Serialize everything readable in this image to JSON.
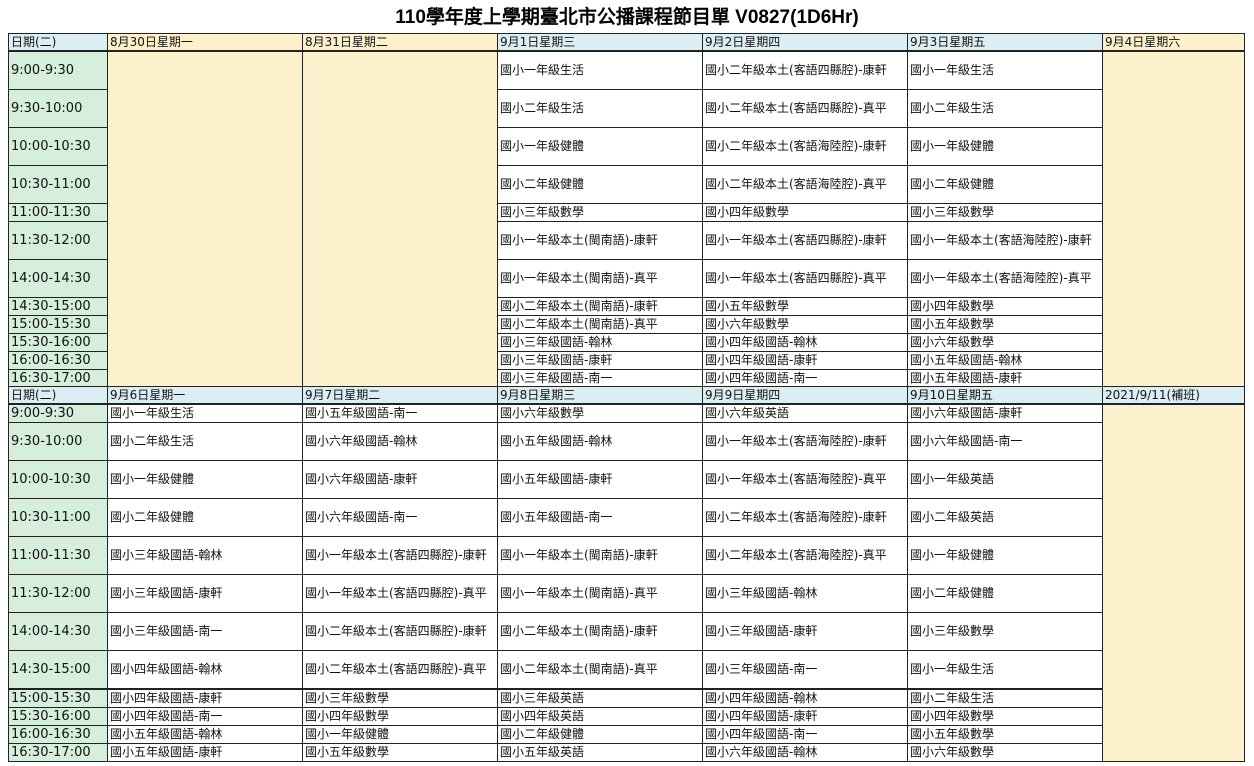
{
  "title": "110學年度上學期臺北市公播課程節目單 V0827(1D6Hr)",
  "colors": {
    "header": "#dbeef3",
    "holiday": "#fdf0cd",
    "time": "#d6eedc"
  },
  "week1": {
    "headers": [
      "日期(二)",
      "8月30日星期一",
      "8月31日星期二",
      "9月1日星期三",
      "9月2日星期四",
      "9月3日星期五",
      "9月4日星期六"
    ],
    "rows": [
      {
        "time": "9:00-9:30",
        "cells": [
          "國小一年級生活",
          "國小二年級本土(客語四縣腔)-康軒",
          "國小一年級生活"
        ]
      },
      {
        "time": "9:30-10:00",
        "cells": [
          "國小二年級生活",
          "國小二年級本土(客語四縣腔)-真平",
          "國小二年級生活"
        ]
      },
      {
        "time": "10:00-10:30",
        "cells": [
          "國小一年級健體",
          "國小二年級本土(客語海陸腔)-康軒",
          "國小一年級健體"
        ]
      },
      {
        "time": "10:30-11:00",
        "cells": [
          "國小二年級健體",
          "國小二年級本土(客語海陸腔)-真平",
          "國小二年級健體"
        ]
      },
      {
        "time": "11:00-11:30",
        "cells": [
          "國小三年級數學",
          "國小四年級數學",
          "國小三年級數學"
        ]
      },
      {
        "time": "11:30-12:00",
        "cells": [
          "國小一年級本土(閩南語)-康軒",
          "國小一年級本土(客語四縣腔)-康軒",
          "國小一年級本土(客語海陸腔)-康軒"
        ]
      },
      {
        "time": "14:00-14:30",
        "cells": [
          "國小一年級本土(閩南語)-真平",
          "國小一年級本土(客語四縣腔)-真平",
          "國小一年級本土(客語海陸腔)-真平"
        ]
      },
      {
        "time": "14:30-15:00",
        "cells": [
          "國小二年級本土(閩南語)-康軒",
          "國小五年級數學",
          "國小四年級數學"
        ]
      },
      {
        "time": "15:00-15:30",
        "cells": [
          "國小二年級本土(閩南語)-真平",
          "國小六年級數學",
          "國小五年級數學"
        ]
      },
      {
        "time": "15:30-16:00",
        "cells": [
          "國小三年級國語-翰林",
          "國小四年級國語-翰林",
          "國小六年級數學"
        ]
      },
      {
        "time": "16:00-16:30",
        "cells": [
          "國小三年級國語-康軒",
          "國小四年級國語-康軒",
          "國小五年級國語-翰林"
        ]
      },
      {
        "time": "16:30-17:00",
        "cells": [
          "國小三年級國語-南一",
          "國小四年級國語-南一",
          "國小五年級國語-康軒"
        ]
      }
    ]
  },
  "week2": {
    "headers": [
      "日期(二)",
      "9月6日星期一",
      "9月7日星期二",
      "9月8日星期三",
      "9月9日星期四",
      "9月10日星期五",
      "2021/9/11(補班)"
    ],
    "rows": [
      {
        "time": "9:00-9:30",
        "cells": [
          "國小一年級生活",
          "國小五年級國語-南一",
          "國小六年級數學",
          "國小六年級英語",
          "國小六年級國語-康軒"
        ]
      },
      {
        "time": "9:30-10:00",
        "cells": [
          "國小二年級生活",
          "國小六年級國語-翰林",
          "國小五年級國語-翰林",
          "國小一年級本土(客語海陸腔)-康軒",
          "國小六年級國語-南一"
        ]
      },
      {
        "time": "10:00-10:30",
        "cells": [
          "國小一年級健體",
          "國小六年級國語-康軒",
          "國小五年級國語-康軒",
          "國小一年級本土(客語海陸腔)-真平",
          "國小一年級英語"
        ]
      },
      {
        "time": "10:30-11:00",
        "cells": [
          "國小二年級健體",
          "國小六年級國語-南一",
          "國小五年級國語-南一",
          "國小二年級本土(客語海陸腔)-康軒",
          "國小二年級英語"
        ]
      },
      {
        "time": "11:00-11:30",
        "cells": [
          "國小三年級國語-翰林",
          "國小一年級本土(客語四縣腔)-康軒",
          "國小一年級本土(閩南語)-康軒",
          "國小二年級本土(客語海陸腔)-真平",
          "國小一年級健體"
        ]
      },
      {
        "time": "11:30-12:00",
        "cells": [
          "國小三年級國語-康軒",
          "國小一年級本土(客語四縣腔)-真平",
          "國小一年級本土(閩南語)-真平",
          "國小三年級國語-翰林",
          "國小二年級健體"
        ]
      },
      {
        "time": "14:00-14:30",
        "cells": [
          "國小三年級國語-南一",
          "國小二年級本土(客語四縣腔)-康軒",
          "國小二年級本土(閩南語)-康軒",
          "國小三年級國語-康軒",
          "國小三年級數學"
        ]
      },
      {
        "time": "14:30-15:00",
        "cells": [
          "國小四年級國語-翰林",
          "國小二年級本土(客語四縣腔)-真平",
          "國小二年級本土(閩南語)-真平",
          "國小三年級國語-南一",
          "國小一年級生活"
        ]
      },
      {
        "time": "15:00-15:30",
        "cells": [
          "國小四年級國語-康軒",
          "國小三年級數學",
          "國小三年級英語",
          "國小四年級國語-翰林",
          "國小二年級生活"
        ]
      },
      {
        "time": "15:30-16:00",
        "cells": [
          "國小四年級國語-南一",
          "國小四年級數學",
          "國小四年級英語",
          "國小四年級國語-康軒",
          "國小四年級數學"
        ]
      },
      {
        "time": "16:00-16:30",
        "cells": [
          "國小五年級國語-翰林",
          "國小一年級健體",
          "國小二年級健體",
          "國小四年級國語-南一",
          "國小五年級數學"
        ]
      },
      {
        "time": "16:30-17:00",
        "cells": [
          "國小五年級國語-康軒",
          "國小五年級數學",
          "國小五年級英語",
          "國小六年級國語-翰林",
          "國小六年級數學"
        ]
      }
    ]
  }
}
